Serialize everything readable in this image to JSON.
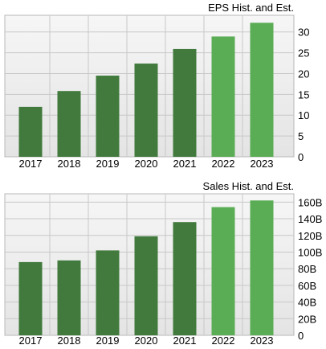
{
  "chart_data": [
    {
      "type": "bar",
      "title": "EPS Hist. and Est.",
      "categories": [
        "2017",
        "2018",
        "2019",
        "2020",
        "2021",
        "2022",
        "2023"
      ],
      "values": [
        12.0,
        15.8,
        19.5,
        22.4,
        25.9,
        28.9,
        32.2
      ],
      "estimate_from_index": 5,
      "ylim": [
        0,
        34
      ],
      "yticks": [
        0,
        5,
        10,
        15,
        20,
        25,
        30
      ],
      "ytick_labels": [
        "0",
        "5",
        "10",
        "15",
        "20",
        "25",
        "30"
      ],
      "grid": true,
      "ylabel": "",
      "xlabel": "",
      "colors": {
        "historical": "#417a3c",
        "estimate": "#5aac55",
        "grid": "#c8c8c8",
        "background_top": "#f6f6f6",
        "background_bottom": "#e4e4e4"
      }
    },
    {
      "type": "bar",
      "title": "Sales Hist. and Est.",
      "categories": [
        "2017",
        "2018",
        "2019",
        "2020",
        "2021",
        "2022",
        "2023"
      ],
      "values": [
        88,
        90,
        102,
        119,
        136,
        154,
        162
      ],
      "estimate_from_index": 5,
      "ylim": [
        0,
        170
      ],
      "yticks": [
        0,
        20,
        40,
        60,
        80,
        100,
        120,
        140,
        160
      ],
      "ytick_labels": [
        "0",
        "20B",
        "40B",
        "60B",
        "80B",
        "100B",
        "120B",
        "140B",
        "160B"
      ],
      "grid": true,
      "ylabel": "",
      "xlabel": "",
      "colors": {
        "historical": "#417a3c",
        "estimate": "#5aac55",
        "grid": "#c8c8c8",
        "background_top": "#f6f6f6",
        "background_bottom": "#e4e4e4"
      }
    }
  ]
}
